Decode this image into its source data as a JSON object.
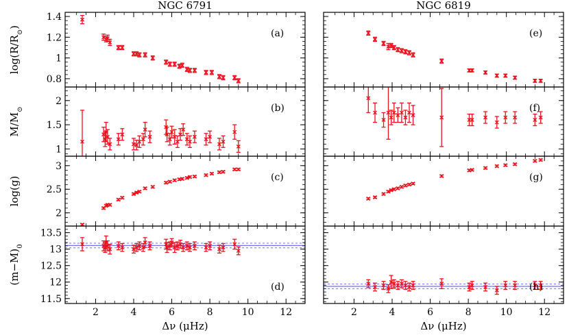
{
  "colors": {
    "points": "#e8111b",
    "band": "#6f6ff0",
    "axes": "#000000"
  },
  "chart_data": [
    {
      "type": "scatter",
      "column_title": "NGC 6791",
      "panel": "(a)",
      "ylabel": "log(R/R",
      "ylabel_sub": "⊙",
      "ylabel_end": ")",
      "xlim": [
        0.4,
        13
      ],
      "ylim": [
        0.72,
        1.44
      ],
      "yticks": [
        0.8,
        1.0,
        1.2,
        1.4
      ],
      "yticklabels": [
        "0.8",
        "1",
        "1.2",
        "1.4"
      ],
      "xticks": [
        2,
        4,
        6,
        8,
        10,
        12
      ],
      "xticklabels": [],
      "x": [
        1.3,
        2.42,
        2.55,
        2.63,
        2.75,
        3.2,
        3.4,
        4.0,
        4.15,
        4.3,
        4.6,
        5.0,
        5.7,
        5.9,
        6.15,
        6.4,
        6.55,
        6.8,
        6.95,
        7.2,
        7.8,
        8.1,
        8.5,
        8.7,
        9.3,
        9.5
      ],
      "y": [
        1.37,
        1.2,
        1.18,
        1.19,
        1.15,
        1.1,
        1.1,
        1.04,
        1.04,
        1.03,
        1.03,
        1.0,
        0.96,
        0.94,
        0.94,
        0.92,
        0.93,
        0.89,
        0.88,
        0.88,
        0.86,
        0.86,
        0.82,
        0.81,
        0.81,
        0.78
      ],
      "err": [
        0.04,
        0.03,
        0.025,
        0.03,
        0.03,
        0.02,
        0.02,
        0.02,
        0.02,
        0.02,
        0.02,
        0.02,
        0.02,
        0.02,
        0.02,
        0.02,
        0.02,
        0.02,
        0.02,
        0.02,
        0.02,
        0.02,
        0.02,
        0.02,
        0.02,
        0.02
      ]
    },
    {
      "type": "scatter",
      "column_title": "NGC 6819",
      "panel": "(e)",
      "ylabel": "",
      "xlim": [
        0.4,
        13
      ],
      "ylim": [
        0.72,
        1.44
      ],
      "yticks": [
        0.8,
        1.0,
        1.2,
        1.4
      ],
      "yticklabels": [],
      "xticks": [
        2,
        4,
        6,
        8,
        10,
        12
      ],
      "xticklabels": [],
      "x": [
        2.75,
        3.1,
        3.55,
        3.8,
        3.95,
        4.1,
        4.3,
        4.5,
        4.7,
        4.9,
        5.1,
        6.6,
        8.05,
        8.2,
        8.9,
        9.5,
        9.95,
        10.45,
        11.5,
        11.8
      ],
      "y": [
        1.24,
        1.18,
        1.14,
        1.11,
        1.12,
        1.1,
        1.08,
        1.07,
        1.06,
        1.05,
        1.03,
        0.97,
        0.88,
        0.88,
        0.86,
        0.83,
        0.83,
        0.81,
        0.78,
        0.78
      ],
      "err": [
        0.02,
        0.02,
        0.02,
        0.03,
        0.02,
        0.02,
        0.02,
        0.02,
        0.02,
        0.02,
        0.02,
        0.02,
        0.015,
        0.015,
        0.015,
        0.015,
        0.015,
        0.015,
        0.015,
        0.015
      ]
    },
    {
      "type": "scatter",
      "column_title": "",
      "panel": "(b)",
      "ylabel": "M/M",
      "ylabel_sub": "⊙",
      "ylabel_end": "",
      "xlim": [
        0.4,
        13
      ],
      "ylim": [
        0.85,
        2.28
      ],
      "yticks": [
        1.0,
        1.5,
        2.0
      ],
      "yticklabels": [
        "1",
        "1.5",
        "2"
      ],
      "xticks": [
        2,
        4,
        6,
        8,
        10,
        12
      ],
      "xticklabels": [],
      "x": [
        1.3,
        2.42,
        2.5,
        2.55,
        2.63,
        2.75,
        3.2,
        3.4,
        4.0,
        4.15,
        4.3,
        4.5,
        4.6,
        4.85,
        5.7,
        5.75,
        5.9,
        6.0,
        6.15,
        6.3,
        6.45,
        6.6,
        6.8,
        6.95,
        7.2,
        7.8,
        8.0,
        8.5,
        8.7,
        9.3,
        9.5
      ],
      "y": [
        1.15,
        1.3,
        1.2,
        1.35,
        1.25,
        1.1,
        1.2,
        1.3,
        1.1,
        1.08,
        1.15,
        1.2,
        1.4,
        1.25,
        1.45,
        1.3,
        1.2,
        1.35,
        1.25,
        1.15,
        1.3,
        1.4,
        1.2,
        1.15,
        1.25,
        1.2,
        1.25,
        1.1,
        1.15,
        1.35,
        1.05
      ],
      "err": [
        0.65,
        0.15,
        0.15,
        0.2,
        0.15,
        0.12,
        0.12,
        0.12,
        0.12,
        0.1,
        0.12,
        0.12,
        0.15,
        0.12,
        0.15,
        0.15,
        0.12,
        0.12,
        0.15,
        0.12,
        0.12,
        0.12,
        0.12,
        0.12,
        0.12,
        0.12,
        0.12,
        0.12,
        0.12,
        0.15,
        0.12
      ]
    },
    {
      "type": "scatter",
      "column_title": "",
      "panel": "(f)",
      "ylabel": "",
      "xlim": [
        0.4,
        13
      ],
      "ylim": [
        0.85,
        2.28
      ],
      "yticks": [
        1.0,
        1.5,
        2.0
      ],
      "yticklabels": [],
      "xticks": [
        2,
        4,
        6,
        8,
        10,
        12
      ],
      "xticklabels": [],
      "x": [
        2.75,
        3.1,
        3.55,
        3.8,
        3.95,
        4.1,
        4.3,
        4.5,
        4.7,
        4.9,
        5.1,
        6.6,
        8.05,
        8.2,
        8.9,
        9.5,
        9.95,
        10.45,
        11.5,
        11.8
      ],
      "y": [
        2.05,
        1.75,
        1.6,
        1.75,
        1.65,
        1.75,
        1.7,
        1.75,
        1.65,
        1.75,
        1.7,
        1.65,
        1.6,
        1.6,
        1.65,
        1.55,
        1.65,
        1.65,
        1.6,
        1.65
      ],
      "err": [
        0.3,
        0.2,
        0.15,
        0.55,
        0.15,
        0.2,
        0.15,
        0.2,
        0.15,
        0.2,
        0.2,
        0.6,
        0.12,
        0.12,
        0.12,
        0.12,
        0.12,
        0.12,
        0.12,
        0.12
      ]
    },
    {
      "type": "scatter",
      "column_title": "",
      "panel": "(c)",
      "ylabel": "log(g)",
      "xlim": [
        0.4,
        13
      ],
      "ylim": [
        1.72,
        3.2
      ],
      "yticks": [
        2.0,
        2.5,
        3.0
      ],
      "yticklabels": [
        "2",
        "2.5",
        "3"
      ],
      "xticks": [
        2,
        4,
        6,
        8,
        10,
        12
      ],
      "xticklabels": [],
      "x": [
        1.3,
        2.42,
        2.55,
        2.63,
        2.75,
        3.2,
        3.4,
        4.0,
        4.15,
        4.3,
        4.6,
        5.0,
        5.7,
        5.9,
        6.15,
        6.4,
        6.55,
        6.8,
        6.95,
        7.2,
        7.8,
        8.1,
        8.5,
        8.7,
        9.3,
        9.5
      ],
      "y": [
        1.75,
        2.1,
        2.15,
        2.17,
        2.17,
        2.28,
        2.32,
        2.4,
        2.43,
        2.45,
        2.52,
        2.55,
        2.64,
        2.66,
        2.69,
        2.71,
        2.72,
        2.74,
        2.76,
        2.77,
        2.8,
        2.83,
        2.86,
        2.87,
        2.92,
        2.92
      ],
      "err": [
        0.02,
        0.02,
        0.02,
        0.02,
        0.02,
        0.02,
        0.02,
        0.02,
        0.02,
        0.02,
        0.02,
        0.02,
        0.02,
        0.02,
        0.02,
        0.02,
        0.02,
        0.02,
        0.02,
        0.02,
        0.02,
        0.02,
        0.02,
        0.02,
        0.02,
        0.02
      ]
    },
    {
      "type": "scatter",
      "column_title": "",
      "panel": "(g)",
      "ylabel": "",
      "xlim": [
        0.4,
        13
      ],
      "ylim": [
        1.72,
        3.2
      ],
      "yticks": [
        2.0,
        2.5,
        3.0
      ],
      "yticklabels": [],
      "xticks": [
        2,
        4,
        6,
        8,
        10,
        12
      ],
      "xticklabels": [],
      "x": [
        2.75,
        3.1,
        3.55,
        3.8,
        3.95,
        4.1,
        4.3,
        4.5,
        4.7,
        4.9,
        5.1,
        6.6,
        8.05,
        8.2,
        8.9,
        9.5,
        9.95,
        10.45,
        11.5,
        11.8
      ],
      "y": [
        2.3,
        2.33,
        2.4,
        2.45,
        2.48,
        2.5,
        2.52,
        2.55,
        2.58,
        2.6,
        2.62,
        2.78,
        2.9,
        2.91,
        2.95,
        2.99,
        3.01,
        3.03,
        3.1,
        3.12
      ],
      "err": [
        0.02,
        0.02,
        0.02,
        0.02,
        0.02,
        0.02,
        0.02,
        0.02,
        0.02,
        0.02,
        0.02,
        0.02,
        0.02,
        0.02,
        0.02,
        0.02,
        0.02,
        0.02,
        0.02,
        0.02
      ]
    },
    {
      "type": "scatter",
      "column_title": "",
      "panel": "(d)",
      "ylabel": "(m−M)",
      "ylabel_sub": "0",
      "ylabel_end": "",
      "xlim": [
        0.4,
        13
      ],
      "ylim": [
        11.35,
        13.7
      ],
      "yticks": [
        11.5,
        12.0,
        12.5,
        13.0,
        13.5
      ],
      "yticklabels": [
        "11.5",
        "12",
        "12.5",
        "13",
        "13.5"
      ],
      "xticks": [
        2,
        4,
        6,
        8,
        10,
        12
      ],
      "xticklabels": [
        "2",
        "4",
        "6",
        "8",
        "10",
        "12"
      ],
      "band": {
        "center": 13.11,
        "halfwidth": 0.07
      },
      "x": [
        1.3,
        2.42,
        2.5,
        2.55,
        2.63,
        2.75,
        3.2,
        3.4,
        4.0,
        4.15,
        4.3,
        4.5,
        4.6,
        4.85,
        5.7,
        5.75,
        5.9,
        6.0,
        6.15,
        6.3,
        6.45,
        6.6,
        6.8,
        6.95,
        7.2,
        7.8,
        8.0,
        8.5,
        8.7,
        9.3,
        9.5
      ],
      "y": [
        13.15,
        13.1,
        13.05,
        13.2,
        13.1,
        13.0,
        13.1,
        13.05,
        13.0,
        13.05,
        13.1,
        13.05,
        13.2,
        13.1,
        13.15,
        13.05,
        13.1,
        13.2,
        13.05,
        13.1,
        13.15,
        13.05,
        13.1,
        13.05,
        13.1,
        13.05,
        13.1,
        13.0,
        13.05,
        13.15,
        12.95
      ],
      "err": [
        0.2,
        0.15,
        0.15,
        0.2,
        0.15,
        0.15,
        0.12,
        0.12,
        0.12,
        0.12,
        0.12,
        0.12,
        0.15,
        0.12,
        0.15,
        0.15,
        0.12,
        0.12,
        0.15,
        0.12,
        0.12,
        0.12,
        0.12,
        0.12,
        0.12,
        0.12,
        0.12,
        0.12,
        0.12,
        0.15,
        0.12
      ]
    },
    {
      "type": "scatter",
      "column_title": "",
      "panel": "(h)",
      "ylabel": "",
      "xlim": [
        0.4,
        13
      ],
      "ylim": [
        11.35,
        13.7
      ],
      "yticks": [
        11.5,
        12.0,
        12.5,
        13.0,
        13.5
      ],
      "yticklabels": [],
      "xticks": [
        2,
        4,
        6,
        8,
        10,
        12
      ],
      "xticklabels": [
        "2",
        "4",
        "6",
        "8",
        "10",
        "12"
      ],
      "band": {
        "center": 11.87,
        "halfwidth": 0.07
      },
      "x": [
        2.75,
        3.1,
        3.55,
        3.8,
        3.95,
        4.1,
        4.3,
        4.5,
        4.7,
        4.9,
        5.1,
        6.6,
        8.05,
        8.2,
        8.9,
        9.5,
        9.95,
        10.45,
        11.5,
        11.8
      ],
      "y": [
        11.95,
        11.85,
        11.9,
        11.8,
        12.0,
        11.95,
        11.9,
        11.95,
        11.9,
        11.85,
        11.9,
        11.95,
        11.85,
        11.9,
        11.85,
        11.75,
        11.9,
        11.9,
        11.9,
        11.9
      ],
      "err": [
        0.12,
        0.12,
        0.12,
        0.12,
        0.2,
        0.12,
        0.12,
        0.12,
        0.12,
        0.12,
        0.12,
        0.15,
        0.12,
        0.12,
        0.12,
        0.12,
        0.12,
        0.12,
        0.12,
        0.12
      ]
    }
  ],
  "xlabel_left": "Δν (μHz)",
  "xlabel_right": "Δν (μHz)"
}
